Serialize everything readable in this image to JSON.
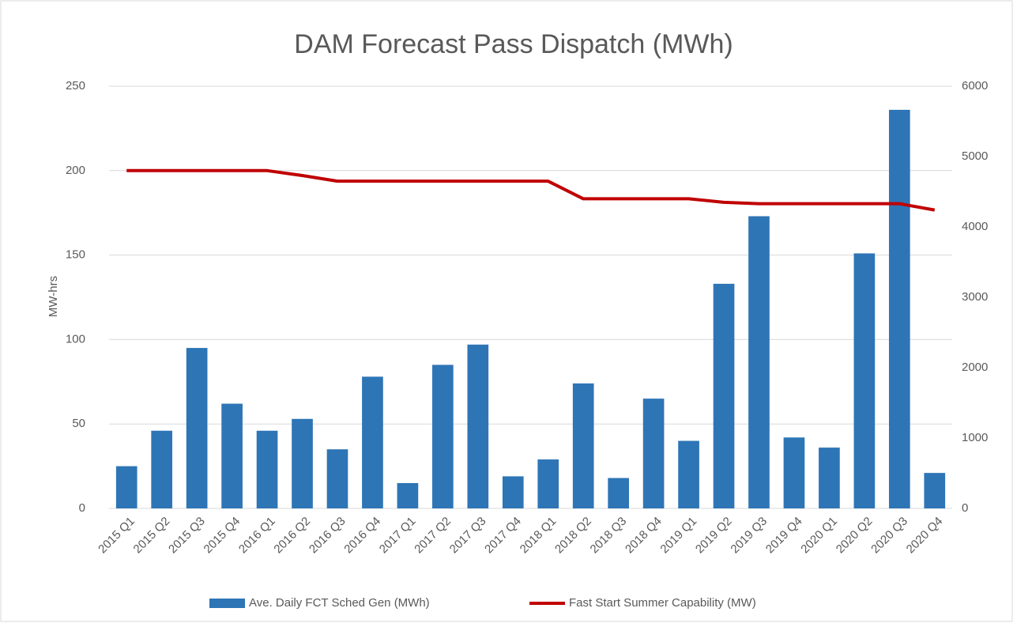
{
  "chart_data": {
    "type": "bar",
    "title": "DAM Forecast Pass Dispatch (MWh)",
    "ylabel": "MW-hrs",
    "categories": [
      "2015 Q1",
      "2015 Q2",
      "2015 Q3",
      "2015 Q4",
      "2016 Q1",
      "2016 Q2",
      "2016 Q3",
      "2016 Q4",
      "2017 Q1",
      "2017 Q2",
      "2017 Q3",
      "2017 Q4",
      "2018 Q1",
      "2018 Q2",
      "2018 Q3",
      "2018 Q4",
      "2019 Q1",
      "2019 Q2",
      "2019 Q3",
      "2019 Q4",
      "2020 Q1",
      "2020 Q2",
      "2020 Q3",
      "2020 Q4"
    ],
    "series": [
      {
        "name": "Ave. Daily FCT Sched Gen (MWh)",
        "type": "bar",
        "color": "#2e75b6",
        "values": [
          25,
          46,
          95,
          62,
          46,
          53,
          35,
          78,
          15,
          85,
          97,
          19,
          29,
          74,
          18,
          65,
          40,
          133,
          173,
          42,
          36,
          151,
          236,
          21
        ]
      },
      {
        "name": "Fast Start Summer Capability (MW)",
        "type": "line",
        "axis": "y2",
        "color": "#c00000",
        "values": [
          4800,
          4800,
          4800,
          4800,
          4800,
          4730,
          4650,
          4650,
          4650,
          4650,
          4650,
          4650,
          4650,
          4400,
          4400,
          4400,
          4400,
          4350,
          4330,
          4330,
          4330,
          4330,
          4330,
          4240
        ]
      }
    ],
    "ylim": [
      0,
      250
    ],
    "yticks": [
      0,
      50,
      100,
      150,
      200,
      250
    ],
    "y2lim": [
      0,
      6000
    ],
    "y2ticks": [
      0,
      1000,
      2000,
      3000,
      4000,
      5000,
      6000
    ],
    "grid": true,
    "legend": "bottom"
  }
}
